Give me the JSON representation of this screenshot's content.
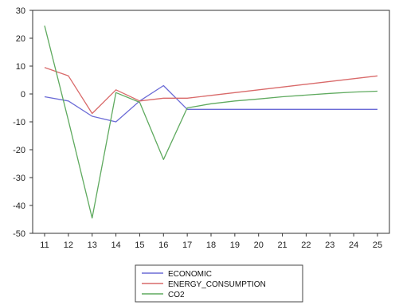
{
  "chart_data": {
    "type": "line",
    "title": "",
    "xlabel": "",
    "ylabel": "",
    "x": [
      "11",
      "12",
      "13",
      "14",
      "15",
      "16",
      "17",
      "18",
      "19",
      "20",
      "21",
      "22",
      "23",
      "24",
      "25"
    ],
    "ylim": [
      -50,
      30
    ],
    "yticks": [
      30,
      20,
      10,
      0,
      -10,
      -20,
      -30,
      -40,
      -50
    ],
    "grid": false,
    "legend_position": "bottom-center",
    "series": [
      {
        "name": "ECONOMIC",
        "color": "#6b6bd6",
        "values": [
          -1,
          -2.5,
          -8,
          -10,
          -2.5,
          3,
          -5.5,
          -5.5,
          -5.5,
          -5.5,
          -5.5,
          -5.5,
          -5.5,
          -5.5,
          -5.5
        ]
      },
      {
        "name": "ENERGY_CONSUMPTION",
        "color": "#d96a6a",
        "values": [
          9.5,
          6.5,
          -7,
          1.5,
          -2.5,
          -1.5,
          -1.5,
          -0.5,
          0.5,
          1.5,
          2.5,
          3.5,
          4.5,
          5.5,
          6.5
        ]
      },
      {
        "name": "CO2",
        "color": "#5faa5f",
        "values": [
          24.5,
          -9.5,
          -44.5,
          0.5,
          -3,
          -23.5,
          -5,
          -3.5,
          -2.5,
          -1.8,
          -1,
          -0.4,
          0.2,
          0.7,
          1
        ]
      }
    ]
  }
}
